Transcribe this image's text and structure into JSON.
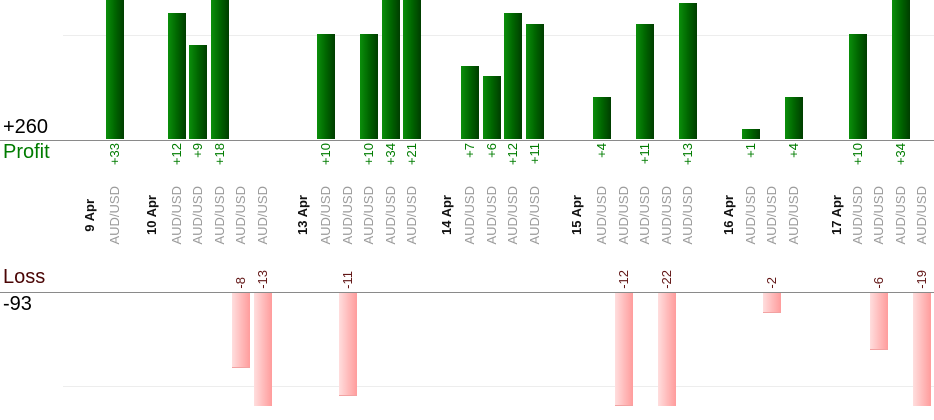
{
  "chart_data": {
    "type": "bar",
    "description": "Per-trade profit/loss columns grouped by day; green bars rise above the Profit axis, pink bars hang below the Loss axis. Tall bars are clipped by the visible area.",
    "groups": [
      {
        "date": "9 Apr",
        "trades": [
          {
            "symbol": "AUD/USD",
            "value": 33
          }
        ]
      },
      {
        "date": "10 Apr",
        "trades": [
          {
            "symbol": "AUD/USD",
            "value": 12
          },
          {
            "symbol": "AUD/USD",
            "value": 9
          },
          {
            "symbol": "AUD/USD",
            "value": 18
          },
          {
            "symbol": "AUD/USD",
            "value": -8
          },
          {
            "symbol": "AUD/USD",
            "value": -13
          }
        ]
      },
      {
        "date": "13 Apr",
        "trades": [
          {
            "symbol": "AUD/USD",
            "value": 10
          },
          {
            "symbol": "AUD/USD",
            "value": -11
          },
          {
            "symbol": "AUD/USD",
            "value": 10
          },
          {
            "symbol": "AUD/USD",
            "value": 34
          },
          {
            "symbol": "AUD/USD",
            "value": 21
          }
        ]
      },
      {
        "date": "14 Apr",
        "trades": [
          {
            "symbol": "AUD/USD",
            "value": 7
          },
          {
            "symbol": "AUD/USD",
            "value": 6
          },
          {
            "symbol": "AUD/USD",
            "value": 12
          },
          {
            "symbol": "AUD/USD",
            "value": 11
          }
        ]
      },
      {
        "date": "15 Apr",
        "trades": [
          {
            "symbol": "AUD/USD",
            "value": 4
          },
          {
            "symbol": "AUD/USD",
            "value": -12
          },
          {
            "symbol": "AUD/USD",
            "value": 11
          },
          {
            "symbol": "AUD/USD",
            "value": -22
          },
          {
            "symbol": "AUD/USD",
            "value": 13
          }
        ]
      },
      {
        "date": "16 Apr",
        "trades": [
          {
            "symbol": "AUD/USD",
            "value": 1
          },
          {
            "symbol": "AUD/USD",
            "value": -2
          },
          {
            "symbol": "AUD/USD",
            "value": 4
          }
        ]
      },
      {
        "date": "17 Apr",
        "trades": [
          {
            "symbol": "AUD/USD",
            "value": 10
          },
          {
            "symbol": "AUD/USD",
            "value": -6
          },
          {
            "symbol": "AUD/USD",
            "value": 34
          },
          {
            "symbol": "AUD/USD",
            "value": -19
          }
        ]
      }
    ],
    "profit_axis": {
      "label": "Profit",
      "total": "+260",
      "gridline_value": 10
    },
    "loss_axis": {
      "label": "Loss",
      "total": "-93",
      "gridline_value": -10
    },
    "value_label_format": "signed integer on each bar",
    "legend_position": "none",
    "grid": "single faint horizontal gridline at +10 and at -10"
  },
  "colors": {
    "background": "#ffffff",
    "profit_bar_gradient": [
      "#0b8f0b",
      "#006600",
      "#003d00"
    ],
    "loss_bar_gradient": [
      "#ffdede",
      "#ffb9b9",
      "#ff9c9c"
    ],
    "loss_bar_edge": "#f2a2a2",
    "profit_text": "#007c00",
    "loss_text": "#621616",
    "loss_heading": "#4a0505",
    "total_text": "#000000",
    "date_text": "#111111",
    "symbol_text": "#9b9b9b",
    "axis_line": "#8a8a8a",
    "grid_line": "#ededed"
  }
}
